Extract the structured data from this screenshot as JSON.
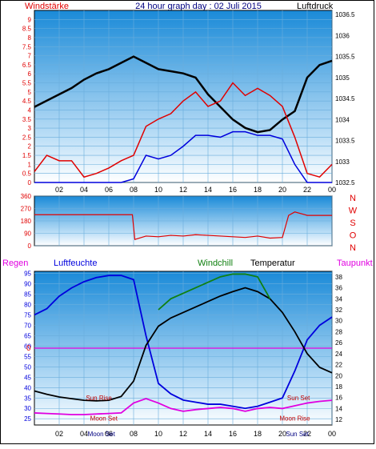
{
  "header": {
    "title": "24 hour graph day : 02 Juli 2015",
    "left_label": "Windstärke",
    "right_label": "Luftdruck"
  },
  "colors": {
    "red": "#e00000",
    "blue": "#0000dd",
    "black": "#000000",
    "green": "#108010",
    "magenta": "#e000e0",
    "navy": "#000080",
    "panel_top": "#1a8ad8",
    "panel_bottom": "#ffffff"
  },
  "x_ticks": [
    "02",
    "04",
    "06",
    "08",
    "10",
    "12",
    "14",
    "16",
    "18",
    "20",
    "22",
    "00"
  ],
  "chart_data": [
    {
      "id": "wind-pressure",
      "type": "line",
      "title": "24 hour graph day : 02 Juli 2015",
      "y_left": {
        "label": "Windstärke",
        "ticks": [
          "0",
          "0.5",
          "1",
          "1.5",
          "2",
          "2.5",
          "3",
          "3.5",
          "4",
          "4.5",
          "5",
          "5.5",
          "6",
          "6.5",
          "7",
          "7.5",
          "8",
          "8.5",
          "9"
        ],
        "range": [
          0,
          9.5
        ]
      },
      "y_right": {
        "label": "Luftdruck",
        "ticks": [
          "1032.5",
          "1033",
          "1033.5",
          "1034",
          "1034.5",
          "1035",
          "1035.5",
          "1036",
          "1036.5"
        ],
        "range": [
          1032.5,
          1036.6
        ]
      },
      "x": [
        0,
        1,
        2,
        3,
        4,
        5,
        6,
        7,
        8,
        9,
        10,
        11,
        12,
        13,
        14,
        15,
        16,
        17,
        18,
        19,
        20,
        21,
        22,
        23,
        24
      ],
      "series": [
        {
          "name": "Luftdruck",
          "axis": "right",
          "color": "#000000",
          "values": [
            1034.3,
            1034.45,
            1034.6,
            1034.75,
            1034.95,
            1035.1,
            1035.2,
            1035.35,
            1035.5,
            1035.35,
            1035.2,
            1035.15,
            1035.1,
            1035.0,
            1034.6,
            1034.3,
            1034.0,
            1033.8,
            1033.7,
            1033.75,
            1034.0,
            1034.2,
            1035.0,
            1035.3,
            1035.4
          ]
        },
        {
          "name": "Windgeschwindigkeit",
          "axis": "left",
          "color": "#0000dd",
          "values": [
            0,
            0,
            0,
            0,
            0,
            0,
            0,
            0,
            0.2,
            1.5,
            1.3,
            1.5,
            2,
            2.6,
            2.6,
            2.5,
            2.8,
            2.8,
            2.6,
            2.6,
            2.4,
            1,
            0,
            0,
            0
          ]
        },
        {
          "name": "Windböen",
          "axis": "left",
          "color": "#e00000",
          "values": [
            0.6,
            1.5,
            1.2,
            1.2,
            0.3,
            0.5,
            0.8,
            1.2,
            1.5,
            3.1,
            3.5,
            3.8,
            4.5,
            5.0,
            4.2,
            4.5,
            5.5,
            4.8,
            5.2,
            4.8,
            4.2,
            2.5,
            0.5,
            0.3,
            1.0
          ]
        }
      ]
    },
    {
      "id": "wind-direction",
      "type": "line",
      "y_left": {
        "ticks": [
          "0",
          "90",
          "180",
          "270",
          "360"
        ],
        "range": [
          0,
          360
        ]
      },
      "y_right": {
        "ticks": [
          "N",
          "W",
          "S",
          "O",
          "N"
        ]
      },
      "x": [
        0,
        1,
        2,
        3,
        4,
        5,
        6,
        7,
        7.9,
        8.1,
        9,
        10,
        11,
        12,
        13,
        14,
        15,
        16,
        17,
        18,
        19,
        20,
        20.5,
        21,
        22,
        23,
        24
      ],
      "series": [
        {
          "name": "Windrichtung",
          "color": "#e00000",
          "values": [
            225,
            225,
            225,
            225,
            225,
            225,
            225,
            225,
            225,
            45,
            70,
            65,
            75,
            70,
            80,
            75,
            70,
            65,
            60,
            70,
            55,
            60,
            220,
            245,
            220,
            220,
            220
          ]
        }
      ]
    },
    {
      "id": "humidity-temperature",
      "type": "line",
      "labels": [
        "Regen",
        "Luftfeuchte",
        "Windchill",
        "Temperatur",
        "Taupunkt"
      ],
      "y_left": {
        "label": "Luftfeuchte",
        "ticks": [
          "25",
          "30",
          "35",
          "40",
          "45",
          "50",
          "55",
          "60",
          "65",
          "70",
          "75",
          "80",
          "85",
          "90",
          "95"
        ],
        "range": [
          22,
          96
        ]
      },
      "y_right": {
        "label": "Temperatur",
        "ticks": [
          "12",
          "14",
          "16",
          "18",
          "20",
          "22",
          "24",
          "26",
          "28",
          "30",
          "32",
          "34",
          "36",
          "38"
        ],
        "range": [
          11,
          39
        ]
      },
      "rain_marker": "0",
      "x": [
        0,
        1,
        2,
        3,
        4,
        5,
        6,
        7,
        8,
        9,
        10,
        11,
        12,
        13,
        14,
        15,
        16,
        17,
        18,
        19,
        20,
        21,
        22,
        23,
        24
      ],
      "series": [
        {
          "name": "Luftfeuchte",
          "axis": "left",
          "color": "#0000dd",
          "values": [
            75,
            78,
            84,
            88,
            91,
            93,
            94,
            94,
            92,
            65,
            42,
            37,
            34,
            33,
            32,
            32,
            31,
            30,
            31,
            33,
            35,
            48,
            63,
            70,
            74
          ]
        },
        {
          "name": "Temperatur",
          "axis": "right",
          "color": "#000000",
          "values": [
            17.2,
            16.6,
            16.1,
            15.8,
            15.5,
            15.4,
            15.5,
            16.2,
            19,
            25.5,
            29,
            30.5,
            31.5,
            32.5,
            33.5,
            34.5,
            35.3,
            36,
            35.3,
            34,
            31.5,
            28,
            24,
            21.5,
            20.5
          ]
        },
        {
          "name": "Windchill",
          "axis": "right",
          "color": "#108010",
          "values": [
            null,
            null,
            null,
            null,
            null,
            null,
            null,
            null,
            null,
            null,
            32,
            34,
            35,
            36,
            37,
            38,
            38.5,
            38.5,
            38,
            34,
            null,
            null,
            null,
            null,
            null
          ]
        },
        {
          "name": "Taupunkt",
          "axis": "right",
          "color": "#e000e0",
          "values": [
            13.2,
            13.1,
            13.0,
            12.9,
            12.9,
            13.0,
            13.1,
            13.2,
            15,
            15.8,
            15.0,
            14.0,
            13.5,
            13.8,
            14.0,
            14.2,
            14.0,
            13.5,
            14.0,
            14.2,
            14.0,
            14.5,
            15.0,
            15.3,
            15.5
          ]
        }
      ],
      "annotations": [
        {
          "text": "Sun Rise",
          "x": 5.2,
          "y": 15.5,
          "color": "#c00000"
        },
        {
          "text": "Moon Set",
          "x": 5.6,
          "y": 11.8,
          "color": "#c00000"
        },
        {
          "text": "Sun Set",
          "x": 21.3,
          "y": 15.5,
          "color": "#c00000"
        },
        {
          "text": "Moon Rise",
          "x": 21.0,
          "y": 11.8,
          "color": "#c00000"
        }
      ],
      "axis_event_labels": [
        {
          "text": "Moon Set",
          "x": 5.4
        },
        {
          "text": "Sun Set",
          "x": 21.2
        }
      ]
    }
  ]
}
